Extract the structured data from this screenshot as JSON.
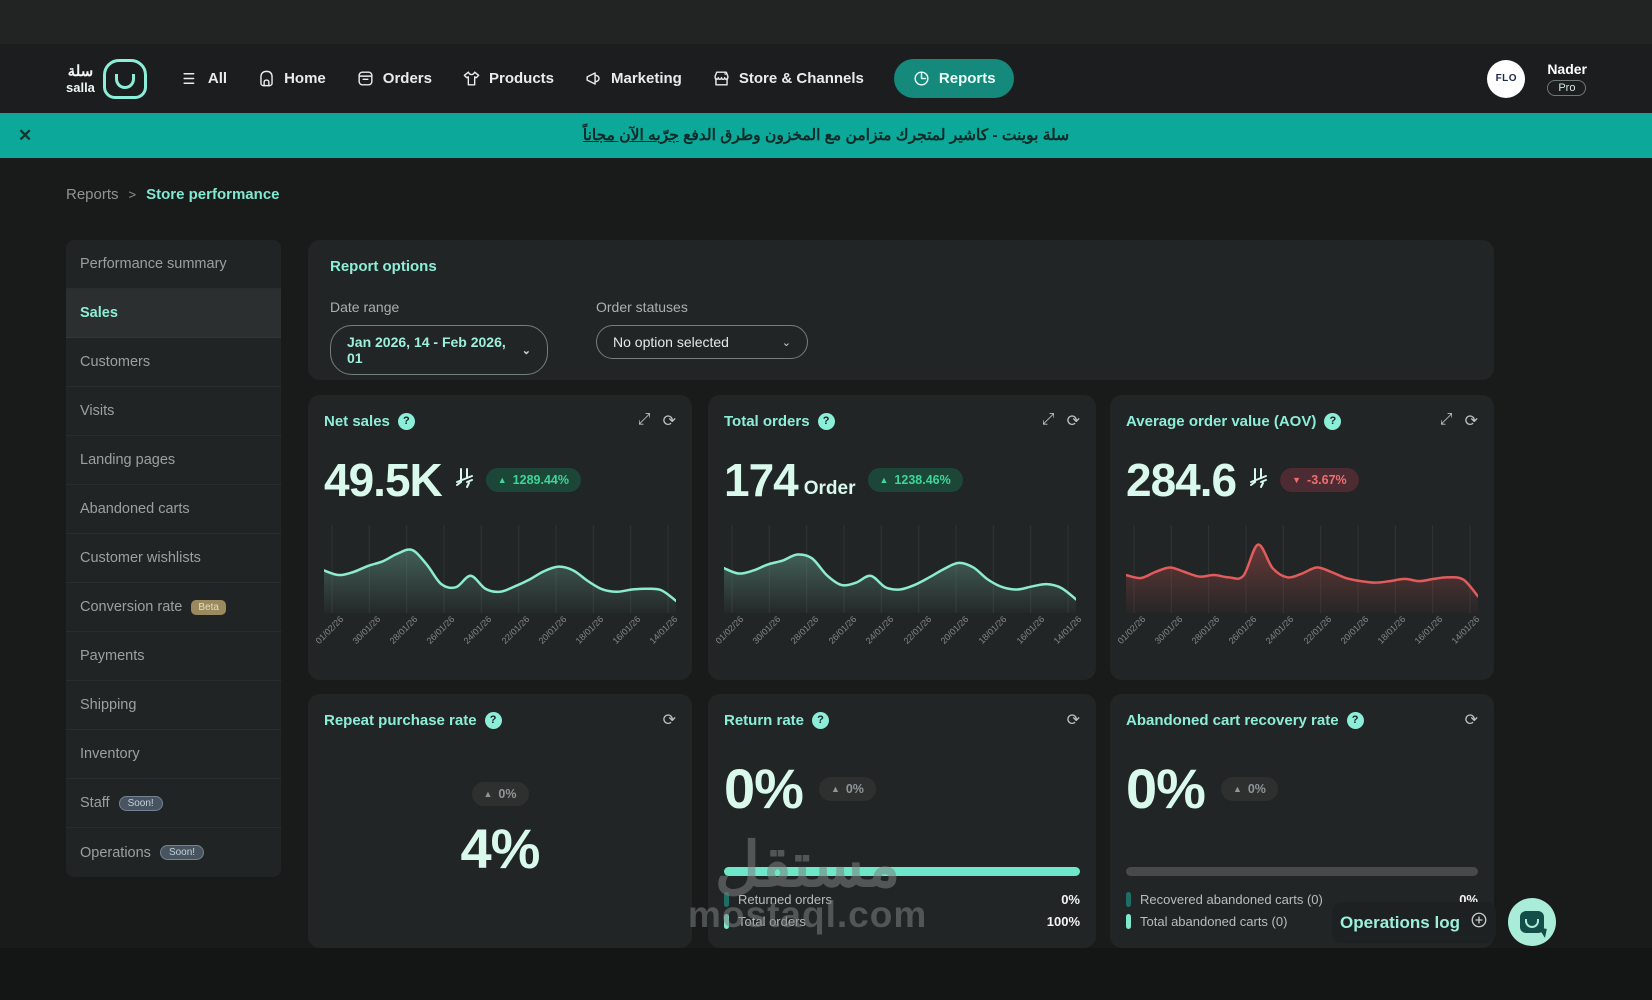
{
  "navbar": {
    "brand": {
      "ar": "سلة",
      "en": "salla"
    },
    "items": [
      {
        "label": "All"
      },
      {
        "label": "Home"
      },
      {
        "label": "Orders"
      },
      {
        "label": "Products"
      },
      {
        "label": "Marketing"
      },
      {
        "label": "Store & Channels"
      },
      {
        "label": "Reports",
        "active": true
      }
    ],
    "user": {
      "name": "Nader",
      "plan_badge": "Pro",
      "avatar_text": "FLO"
    }
  },
  "banner": {
    "close": "✕",
    "text": "سلة بوينت - كاشير لمتجرك متزامن مع المخزون وطرق الدفع",
    "link_text": "جرّبه الآن مجاناً"
  },
  "breadcrumb": {
    "parent": "Reports",
    "separator": ">",
    "current": "Store performance"
  },
  "sidebar": {
    "items": [
      {
        "label": "Performance summary"
      },
      {
        "label": "Sales"
      },
      {
        "label": "Customers"
      },
      {
        "label": "Visits"
      },
      {
        "label": "Landing pages"
      },
      {
        "label": "Abandoned carts"
      },
      {
        "label": "Customer wishlists"
      },
      {
        "label": "Conversion rate",
        "badge": "Beta"
      },
      {
        "label": "Payments"
      },
      {
        "label": "Shipping"
      },
      {
        "label": "Inventory"
      },
      {
        "label": "Staff",
        "badge": "Soon!"
      },
      {
        "label": "Operations",
        "badge": "Soon!"
      }
    ]
  },
  "report_options": {
    "title": "Report options",
    "date_range_label": "Date range",
    "date_range_value": "Jan 2026, 14  -  Feb 2026, 01",
    "order_statuses_label": "Order statuses",
    "order_statuses_value": "No option selected"
  },
  "cards": {
    "net_sales": {
      "title": "Net sales",
      "value": "49.5K",
      "badge": "1289.44%",
      "badge_dir": "up"
    },
    "total_orders": {
      "title": "Total orders",
      "value": "174",
      "suffix": "Order",
      "badge": "1238.46%",
      "badge_dir": "up"
    },
    "aov": {
      "title": "Average order value (AOV)",
      "value": "284.6",
      "badge": "-3.67%",
      "badge_dir": "down"
    },
    "repeat_rate": {
      "title": "Repeat purchase rate",
      "value": "4%",
      "badge": "0%"
    },
    "return_rate": {
      "title": "Return rate",
      "value": "0%",
      "badge": "0%",
      "legend": [
        {
          "label": "Returned orders",
          "value": "0%"
        },
        {
          "label": "Total orders",
          "value": "100%"
        }
      ]
    },
    "abandoned_recovery": {
      "title": "Abandoned cart recovery rate",
      "value": "0%",
      "badge": "0%",
      "legend": [
        {
          "label": "Recovered abandoned carts (0)",
          "value": "0%"
        },
        {
          "label": "Total abandoned carts (0)",
          "value": ""
        }
      ]
    }
  },
  "chart_data": [
    {
      "name": "net_sales",
      "type": "area",
      "color": "#8ceccd",
      "fill": "#5d8d80",
      "title": "Net sales trend",
      "ylim": [
        0,
        100
      ],
      "x": [
        "01/02/26",
        "30/01/26",
        "28/01/26",
        "26/01/26",
        "24/01/26",
        "22/01/26",
        "20/01/26",
        "18/01/26",
        "16/01/26",
        "14/01/26"
      ],
      "values": [
        52,
        46,
        50,
        58,
        64,
        74,
        79,
        60,
        34,
        30,
        45,
        28,
        24,
        31,
        40,
        51,
        57,
        52,
        38,
        27,
        24,
        27,
        28,
        26,
        12
      ]
    },
    {
      "name": "total_orders",
      "type": "area",
      "color": "#8ceccd",
      "fill": "#5d8d80",
      "title": "Total orders trend",
      "ylim": [
        0,
        100
      ],
      "x": [
        "01/02/26",
        "30/01/26",
        "28/01/26",
        "26/01/26",
        "24/01/26",
        "22/01/26",
        "20/01/26",
        "18/01/26",
        "16/01/26",
        "14/01/26"
      ],
      "values": [
        55,
        48,
        52,
        60,
        65,
        73,
        68,
        46,
        33,
        36,
        45,
        30,
        27,
        33,
        43,
        54,
        62,
        56,
        40,
        30,
        27,
        31,
        34,
        29,
        14
      ]
    },
    {
      "name": "average_order_value",
      "type": "area",
      "color": "#e35b5b",
      "fill": "#a04848",
      "title": "AOV trend",
      "ylim": [
        0,
        100
      ],
      "x": [
        "01/02/26",
        "30/01/26",
        "28/01/26",
        "26/01/26",
        "24/01/26",
        "22/01/26",
        "20/01/26",
        "18/01/26",
        "16/01/26",
        "14/01/26"
      ],
      "values": [
        46,
        42,
        50,
        56,
        50,
        44,
        46,
        43,
        45,
        86,
        55,
        43,
        48,
        56,
        50,
        42,
        38,
        36,
        38,
        41,
        38,
        41,
        43,
        40,
        18
      ]
    }
  ],
  "footer": {
    "operations_log": "Operations log"
  },
  "watermark": {
    "line1": "مستقل",
    "line2": "mostaql.com"
  }
}
